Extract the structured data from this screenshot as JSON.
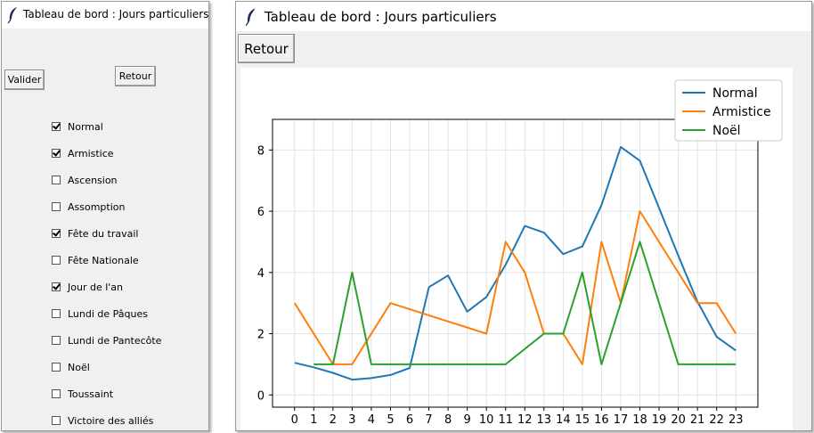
{
  "left_window": {
    "title": "Tableau de bord : Jours particuliers",
    "valider_label": "Valider",
    "retour_label": "Retour",
    "checkboxes": [
      {
        "label": "Normal",
        "checked": true
      },
      {
        "label": "Armistice",
        "checked": true
      },
      {
        "label": "Ascension",
        "checked": false
      },
      {
        "label": "Assomption",
        "checked": false
      },
      {
        "label": "Fête du travail",
        "checked": true
      },
      {
        "label": "Fête Nationale",
        "checked": false
      },
      {
        "label": "Jour de l'an",
        "checked": true
      },
      {
        "label": "Lundi de Pâques",
        "checked": false
      },
      {
        "label": "Lundi de Pantecôte",
        "checked": false
      },
      {
        "label": "Noël",
        "checked": false
      },
      {
        "label": "Toussaint",
        "checked": false
      },
      {
        "label": "Victoire des alliés",
        "checked": false
      }
    ]
  },
  "right_window": {
    "title": "Tableau de bord : Jours particuliers",
    "retour_label": "Retour"
  },
  "chart_data": {
    "type": "line",
    "title": "",
    "xlabel": "",
    "ylabel": "",
    "x": [
      0,
      1,
      2,
      3,
      4,
      5,
      6,
      7,
      8,
      9,
      10,
      11,
      12,
      13,
      14,
      15,
      16,
      17,
      18,
      19,
      20,
      21,
      22,
      23
    ],
    "xlim": [
      -1.15,
      24.15
    ],
    "ylim": [
      -0.4,
      9.0
    ],
    "yticks": [
      0,
      2,
      4,
      6,
      8
    ],
    "grid": true,
    "legend": "top-right",
    "series": [
      {
        "name": "Normal",
        "color": "#1f77b4",
        "values": [
          1.05,
          0.9,
          0.72,
          0.5,
          0.55,
          0.65,
          0.88,
          3.52,
          3.9,
          2.72,
          3.2,
          4.25,
          5.52,
          5.3,
          4.6,
          4.85,
          6.2,
          8.1,
          7.65,
          6.1,
          4.55,
          3.05,
          1.9,
          1.45
        ]
      },
      {
        "name": "Armistice",
        "color": "#ff7f0e",
        "values": [
          3,
          null,
          1,
          1,
          null,
          3,
          null,
          null,
          null,
          null,
          2,
          5,
          4,
          2,
          2,
          1,
          5,
          3,
          6,
          null,
          null,
          3,
          3,
          2
        ]
      },
      {
        "name": "Noël",
        "color": "#2ca02c",
        "values": [
          null,
          1,
          1,
          4,
          1,
          null,
          1,
          1,
          null,
          null,
          null,
          1,
          null,
          2,
          2,
          4,
          1,
          3,
          5,
          null,
          1,
          1,
          1,
          1
        ]
      }
    ]
  }
}
